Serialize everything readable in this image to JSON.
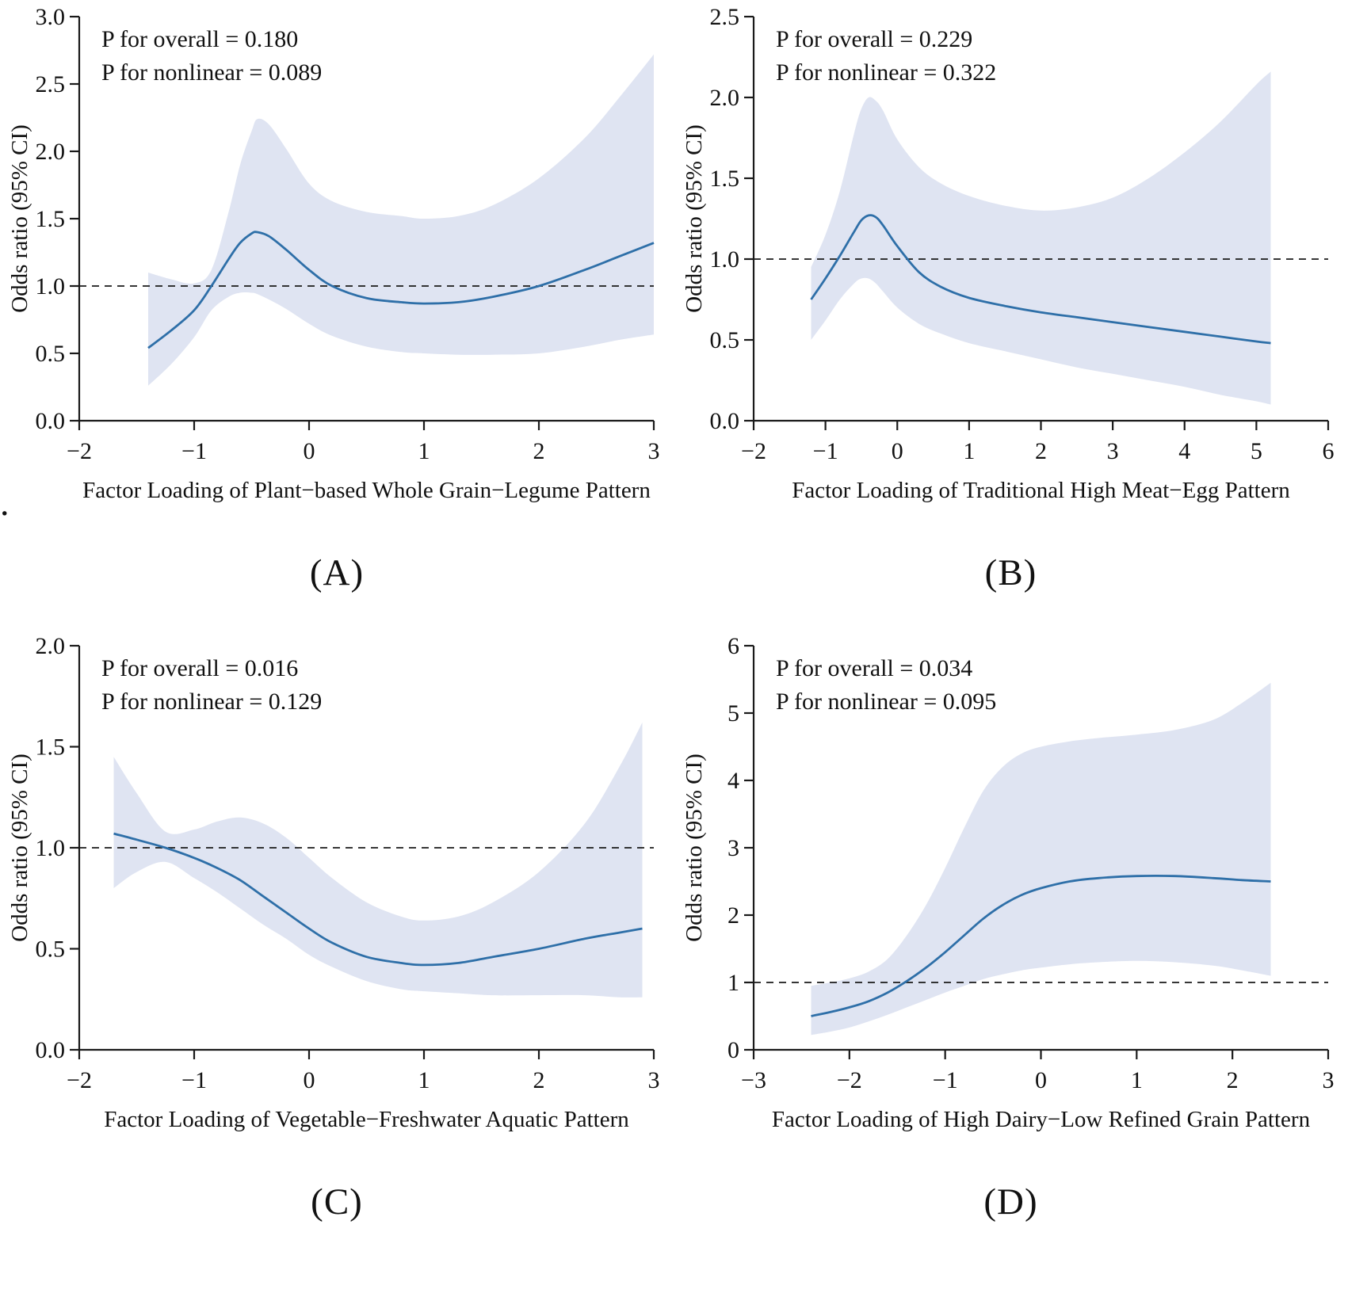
{
  "page": {
    "stray_mark": "."
  },
  "colors": {
    "line": "#2e6fa8",
    "band": "#dfe4f2",
    "axis": "#1a1a1a",
    "reference": "#1a1a1a"
  },
  "chart_data": [
    {
      "id": "A",
      "type": "line",
      "panel_label": "(A)",
      "annotations": [
        "P for overall = 0.180",
        "P for nonlinear = 0.089"
      ],
      "xlabel": "Factor Loading of Plant−based Whole Grain−Legume Pattern",
      "ylabel": "Odds ratio (95% CI)",
      "xlim": [
        -2,
        3
      ],
      "ylim": [
        0,
        3
      ],
      "xticks": {
        "values": [
          -2,
          -1,
          0,
          1,
          2,
          3
        ],
        "labels": [
          "−2",
          "−1",
          "0",
          "1",
          "2",
          "3"
        ]
      },
      "yticks": {
        "values": [
          0,
          0.5,
          1,
          1.5,
          2,
          2.5,
          3
        ],
        "labels": [
          "0.0",
          "0.5",
          "1.0",
          "1.5",
          "2.0",
          "2.5",
          "3.0"
        ]
      },
      "reference_line_y": 1.0,
      "grid": false,
      "series": [
        {
          "name": "odds-ratio",
          "x": [
            -1.4,
            -1.2,
            -1.0,
            -0.85,
            -0.7,
            -0.6,
            -0.5,
            -0.45,
            -0.35,
            -0.2,
            0,
            0.2,
            0.5,
            0.8,
            1.0,
            1.3,
            1.6,
            2.0,
            2.4,
            2.7,
            3.0
          ],
          "y": [
            0.54,
            0.67,
            0.82,
            1.0,
            1.2,
            1.32,
            1.39,
            1.4,
            1.37,
            1.27,
            1.12,
            1.0,
            0.91,
            0.88,
            0.87,
            0.88,
            0.92,
            1.0,
            1.12,
            1.22,
            1.32
          ]
        }
      ],
      "ci_band": {
        "x": [
          -1.4,
          -1.2,
          -1.0,
          -0.85,
          -0.7,
          -0.6,
          -0.5,
          -0.45,
          -0.35,
          -0.2,
          0,
          0.2,
          0.5,
          0.8,
          1.0,
          1.3,
          1.6,
          2.0,
          2.4,
          2.7,
          3.0
        ],
        "upper": [
          1.1,
          1.05,
          1.02,
          1.12,
          1.55,
          1.9,
          2.15,
          2.24,
          2.2,
          2.02,
          1.76,
          1.63,
          1.55,
          1.52,
          1.5,
          1.52,
          1.6,
          1.8,
          2.1,
          2.4,
          2.72
        ],
        "lower": [
          0.26,
          0.42,
          0.62,
          0.82,
          0.92,
          0.95,
          0.95,
          0.94,
          0.9,
          0.83,
          0.72,
          0.63,
          0.55,
          0.51,
          0.5,
          0.49,
          0.49,
          0.5,
          0.55,
          0.6,
          0.64
        ]
      }
    },
    {
      "id": "B",
      "type": "line",
      "panel_label": "(B)",
      "annotations": [
        "P for overall = 0.229",
        "P for nonlinear = 0.322"
      ],
      "xlabel": "Factor Loading of Traditional High Meat−Egg Pattern",
      "ylabel": "Odds ratio (95% CI)",
      "xlim": [
        -2,
        6
      ],
      "ylim": [
        0,
        2.5
      ],
      "xticks": {
        "values": [
          -2,
          -1,
          0,
          1,
          2,
          3,
          4,
          5,
          6
        ],
        "labels": [
          "−2",
          "−1",
          "0",
          "1",
          "2",
          "3",
          "4",
          "5",
          "6"
        ]
      },
      "yticks": {
        "values": [
          0,
          0.5,
          1,
          1.5,
          2,
          2.5
        ],
        "labels": [
          "0.0",
          "0.5",
          "1.0",
          "1.5",
          "2.0",
          "2.5"
        ]
      },
      "reference_line_y": 1.0,
      "grid": false,
      "series": [
        {
          "name": "odds-ratio",
          "x": [
            -1.2,
            -1.0,
            -0.8,
            -0.6,
            -0.5,
            -0.4,
            -0.3,
            -0.2,
            0,
            0.3,
            0.6,
            1.0,
            1.5,
            2.0,
            2.5,
            3.0,
            3.5,
            4.0,
            4.5,
            5.0,
            5.2
          ],
          "y": [
            0.75,
            0.88,
            1.02,
            1.17,
            1.24,
            1.27,
            1.26,
            1.21,
            1.08,
            0.92,
            0.83,
            0.76,
            0.71,
            0.67,
            0.64,
            0.61,
            0.58,
            0.55,
            0.52,
            0.49,
            0.48
          ]
        }
      ],
      "ci_band": {
        "x": [
          -1.2,
          -1.0,
          -0.8,
          -0.6,
          -0.5,
          -0.4,
          -0.3,
          -0.2,
          0,
          0.3,
          0.6,
          1.0,
          1.5,
          2.0,
          2.5,
          3.0,
          3.5,
          4.0,
          4.5,
          5.0,
          5.2
        ],
        "upper": [
          0.95,
          1.15,
          1.42,
          1.78,
          1.93,
          2.0,
          1.98,
          1.92,
          1.74,
          1.57,
          1.47,
          1.39,
          1.33,
          1.3,
          1.32,
          1.38,
          1.5,
          1.66,
          1.85,
          2.08,
          2.16
        ],
        "lower": [
          0.5,
          0.62,
          0.75,
          0.85,
          0.88,
          0.88,
          0.85,
          0.8,
          0.7,
          0.6,
          0.54,
          0.48,
          0.43,
          0.38,
          0.33,
          0.29,
          0.25,
          0.21,
          0.16,
          0.12,
          0.1
        ]
      }
    },
    {
      "id": "C",
      "type": "line",
      "panel_label": "(C)",
      "annotations": [
        "P for overall = 0.016",
        "P for nonlinear = 0.129"
      ],
      "xlabel": "Factor Loading of Vegetable−Freshwater Aquatic  Pattern",
      "ylabel": "Odds ratio (95% CI)",
      "xlim": [
        -2,
        3
      ],
      "ylim": [
        0,
        2
      ],
      "xticks": {
        "values": [
          -2,
          -1,
          0,
          1,
          2,
          3
        ],
        "labels": [
          "−2",
          "−1",
          "0",
          "1",
          "2",
          "3"
        ]
      },
      "yticks": {
        "values": [
          0,
          0.5,
          1,
          1.5,
          2
        ],
        "labels": [
          "0.0",
          "0.5",
          "1.0",
          "1.5",
          "2.0"
        ]
      },
      "reference_line_y": 1.0,
      "grid": false,
      "series": [
        {
          "name": "odds-ratio",
          "x": [
            -1.7,
            -1.5,
            -1.25,
            -1.0,
            -0.8,
            -0.6,
            -0.4,
            -0.2,
            0,
            0.2,
            0.5,
            0.8,
            1.0,
            1.3,
            1.6,
            2.0,
            2.4,
            2.7,
            2.9
          ],
          "y": [
            1.07,
            1.04,
            1.0,
            0.95,
            0.9,
            0.84,
            0.76,
            0.68,
            0.6,
            0.53,
            0.46,
            0.43,
            0.42,
            0.43,
            0.46,
            0.5,
            0.55,
            0.58,
            0.6
          ]
        }
      ],
      "ci_band": {
        "x": [
          -1.7,
          -1.5,
          -1.25,
          -1.0,
          -0.8,
          -0.6,
          -0.4,
          -0.2,
          0,
          0.2,
          0.5,
          0.8,
          1.0,
          1.3,
          1.6,
          2.0,
          2.4,
          2.7,
          2.9
        ],
        "upper": [
          1.45,
          1.27,
          1.08,
          1.09,
          1.13,
          1.15,
          1.12,
          1.05,
          0.95,
          0.85,
          0.73,
          0.66,
          0.64,
          0.66,
          0.73,
          0.88,
          1.12,
          1.4,
          1.62
        ],
        "lower": [
          0.8,
          0.88,
          0.93,
          0.85,
          0.78,
          0.7,
          0.62,
          0.55,
          0.47,
          0.41,
          0.34,
          0.3,
          0.29,
          0.28,
          0.27,
          0.27,
          0.27,
          0.26,
          0.26
        ]
      }
    },
    {
      "id": "D",
      "type": "line",
      "panel_label": "(D)",
      "annotations": [
        "P for overall = 0.034",
        "P for nonlinear = 0.095"
      ],
      "xlabel": "Factor Loading of High Dairy−Low Refined Grain Pattern",
      "ylabel": "Odds ratio (95% CI)",
      "xlim": [
        -3,
        3
      ],
      "ylim": [
        0,
        6
      ],
      "xticks": {
        "values": [
          -3,
          -2,
          -1,
          0,
          1,
          2,
          3
        ],
        "labels": [
          "−3",
          "−2",
          "−1",
          "0",
          "1",
          "2",
          "3"
        ]
      },
      "yticks": {
        "values": [
          0,
          1,
          2,
          3,
          4,
          5,
          6
        ],
        "labels": [
          "0",
          "1",
          "2",
          "3",
          "4",
          "5",
          "6"
        ]
      },
      "reference_line_y": 1.0,
      "grid": false,
      "series": [
        {
          "name": "odds-ratio",
          "x": [
            -2.4,
            -2.2,
            -2.0,
            -1.8,
            -1.6,
            -1.4,
            -1.2,
            -1.0,
            -0.8,
            -0.6,
            -0.4,
            -0.2,
            0,
            0.3,
            0.6,
            1.0,
            1.4,
            1.8,
            2.1,
            2.4
          ],
          "y": [
            0.5,
            0.56,
            0.63,
            0.72,
            0.85,
            1.02,
            1.22,
            1.45,
            1.7,
            1.95,
            2.15,
            2.3,
            2.4,
            2.5,
            2.55,
            2.58,
            2.58,
            2.55,
            2.52,
            2.5
          ]
        }
      ],
      "ci_band": {
        "x": [
          -2.4,
          -2.2,
          -2.0,
          -1.8,
          -1.6,
          -1.4,
          -1.2,
          -1.0,
          -0.8,
          -0.6,
          -0.4,
          -0.2,
          0,
          0.3,
          0.6,
          1.0,
          1.4,
          1.8,
          2.1,
          2.4
        ],
        "upper": [
          0.95,
          1.0,
          1.06,
          1.16,
          1.35,
          1.7,
          2.15,
          2.7,
          3.3,
          3.85,
          4.2,
          4.4,
          4.5,
          4.58,
          4.63,
          4.68,
          4.75,
          4.9,
          5.15,
          5.45
        ],
        "lower": [
          0.22,
          0.27,
          0.33,
          0.42,
          0.52,
          0.63,
          0.74,
          0.85,
          0.95,
          1.05,
          1.12,
          1.18,
          1.22,
          1.27,
          1.3,
          1.32,
          1.3,
          1.25,
          1.18,
          1.1
        ]
      }
    }
  ]
}
